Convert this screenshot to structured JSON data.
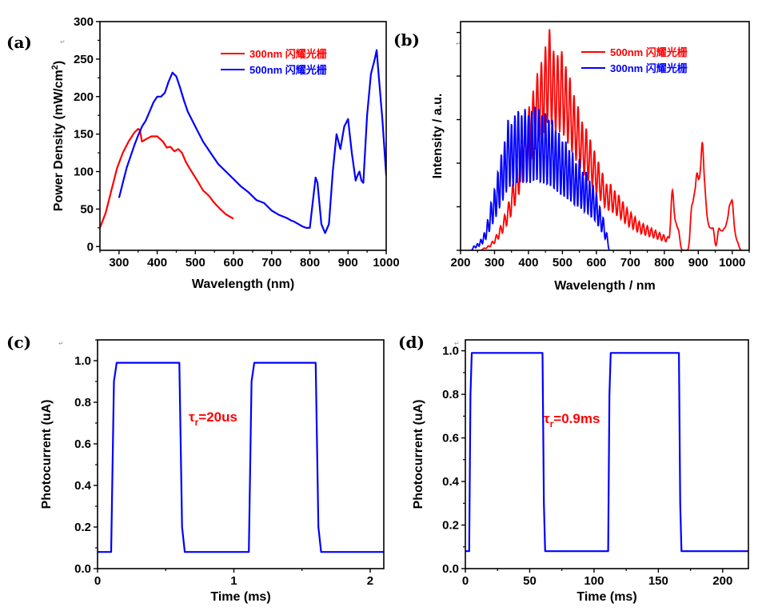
{
  "colors": {
    "red": "#ff0000",
    "blue": "#0000ff",
    "axis": "#000000"
  },
  "return_glyph": "↵",
  "chart_data": [
    {
      "type": "line",
      "panel_label": "(a)",
      "xlabel": "Wavelength (nm)",
      "ylabel": "Power Density (mW/cm²)",
      "xlim": [
        250,
        1000
      ],
      "ylim": [
        -5,
        300
      ],
      "xticks": [
        300,
        400,
        500,
        600,
        700,
        800,
        900,
        1000
      ],
      "yticks": [
        0,
        50,
        100,
        150,
        200,
        250,
        300
      ],
      "legend_position": "top-right",
      "series": [
        {
          "name": "300nm 闪耀光栅",
          "color": "#ff0000",
          "x": [
            250,
            265,
            280,
            295,
            310,
            325,
            340,
            350,
            355,
            360,
            370,
            385,
            400,
            415,
            425,
            435,
            445,
            455,
            465,
            475,
            490,
            505,
            520,
            535,
            550,
            565,
            580,
            600
          ],
          "y": [
            25,
            45,
            75,
            105,
            125,
            140,
            152,
            157,
            155,
            140,
            143,
            147,
            147,
            140,
            132,
            133,
            127,
            130,
            125,
            113,
            100,
            88,
            75,
            68,
            58,
            50,
            43,
            37
          ]
        },
        {
          "name": "500nm 闪耀光栅",
          "color": "#0000ff",
          "x": [
            300,
            310,
            320,
            330,
            340,
            350,
            360,
            370,
            380,
            390,
            400,
            410,
            420,
            430,
            440,
            450,
            460,
            470,
            480,
            500,
            520,
            540,
            560,
            580,
            600,
            620,
            640,
            660,
            670,
            680,
            700,
            720,
            740,
            750,
            760,
            770,
            780,
            790,
            800,
            810,
            815,
            820,
            830,
            840,
            850,
            860,
            870,
            880,
            890,
            900,
            910,
            920,
            925,
            930,
            935,
            940,
            950,
            960,
            970,
            975,
            980,
            990,
            1000
          ],
          "y": [
            65,
            85,
            105,
            120,
            135,
            148,
            160,
            168,
            180,
            192,
            200,
            200,
            205,
            220,
            232,
            227,
            212,
            195,
            180,
            160,
            140,
            125,
            110,
            100,
            90,
            80,
            72,
            62,
            60,
            58,
            48,
            42,
            38,
            35,
            33,
            30,
            27,
            25,
            25,
            70,
            92,
            85,
            30,
            18,
            30,
            100,
            150,
            130,
            160,
            170,
            125,
            88,
            95,
            100,
            88,
            85,
            175,
            230,
            250,
            262,
            230,
            170,
            95
          ]
        }
      ]
    },
    {
      "type": "line",
      "panel_label": "(b)",
      "xlabel": "Wavelength / nm",
      "ylabel": "Intensity / a.u.",
      "xlim": [
        200,
        1050
      ],
      "ylim": [
        0,
        1.05
      ],
      "xticks": [
        200,
        300,
        400,
        500,
        600,
        700,
        800,
        900,
        1000
      ],
      "yticks_unlabeled": 5,
      "legend_position": "top-right",
      "series": [
        {
          "name": "500nm 闪耀光栅",
          "color": "#ff0000",
          "peak_x": [
            270,
            282,
            294,
            306,
            318,
            330,
            342,
            354,
            366,
            378,
            390,
            402,
            414,
            426,
            438,
            450,
            462,
            474,
            486,
            498,
            510,
            522,
            534,
            546,
            558,
            570,
            582,
            594,
            606,
            618,
            630,
            642,
            654,
            666,
            678,
            690,
            702,
            714,
            726,
            738,
            750,
            762,
            774,
            786,
            798,
            810,
            822,
            826,
            834,
            842,
            880,
            888,
            896,
            904,
            912,
            920,
            928,
            936,
            944,
            960,
            968,
            976,
            984,
            992,
            1000,
            1008,
            1016
          ],
          "peak_y": [
            0.01,
            0.02,
            0.04,
            0.07,
            0.11,
            0.16,
            0.22,
            0.3,
            0.38,
            0.47,
            0.55,
            0.65,
            0.72,
            0.8,
            0.85,
            0.92,
            1.0,
            0.9,
            0.88,
            0.9,
            0.83,
            0.78,
            0.7,
            0.65,
            0.58,
            0.55,
            0.5,
            0.45,
            0.4,
            0.35,
            0.3,
            0.3,
            0.27,
            0.25,
            0.22,
            0.19,
            0.17,
            0.15,
            0.13,
            0.12,
            0.11,
            0.1,
            0.09,
            0.08,
            0.07,
            0.06,
            0.17,
            0.14,
            0.1,
            0.08,
            0.17,
            0.2,
            0.3,
            0.25,
            0.44,
            0.22,
            0.1,
            0.08,
            0.09,
            0.09,
            0.07,
            0.08,
            0.1,
            0.17,
            0.2,
            0.06,
            0.03
          ]
        },
        {
          "name": "300nm 闪耀光栅",
          "color": "#0000ff",
          "peak_x": [
            240,
            250,
            260,
            270,
            280,
            290,
            300,
            310,
            320,
            330,
            340,
            350,
            360,
            370,
            380,
            390,
            400,
            410,
            420,
            430,
            440,
            450,
            460,
            470,
            480,
            490,
            500,
            510,
            520,
            530,
            540,
            550,
            560,
            570,
            580,
            590,
            600,
            610,
            620,
            630
          ],
          "peak_y": [
            0.02,
            0.03,
            0.05,
            0.08,
            0.14,
            0.22,
            0.28,
            0.36,
            0.44,
            0.5,
            0.6,
            0.58,
            0.62,
            0.64,
            0.62,
            0.65,
            0.62,
            0.64,
            0.66,
            0.65,
            0.62,
            0.63,
            0.6,
            0.6,
            0.55,
            0.54,
            0.5,
            0.5,
            0.46,
            0.45,
            0.4,
            0.42,
            0.36,
            0.36,
            0.32,
            0.3,
            0.26,
            0.2,
            0.15,
            0.08
          ]
        }
      ]
    },
    {
      "type": "line",
      "panel_label": "(c)",
      "xlabel": "Time (ms)",
      "ylabel": "Photocurrent (uA)",
      "xlim": [
        0,
        2.1
      ],
      "ylim": [
        0,
        1.1
      ],
      "xticks": [
        0,
        1,
        2
      ],
      "yticks": [
        0.0,
        0.2,
        0.4,
        0.6,
        0.8,
        1.0
      ],
      "annotation": "τr=20us",
      "series": [
        {
          "name": "",
          "color": "#0000ff",
          "x": [
            0,
            0.1,
            0.12,
            0.14,
            0.6,
            0.62,
            0.64,
            1.11,
            1.13,
            1.15,
            1.6,
            1.62,
            1.64,
            2.1
          ],
          "y": [
            0.08,
            0.08,
            0.9,
            0.99,
            0.99,
            0.2,
            0.08,
            0.08,
            0.9,
            0.99,
            0.99,
            0.2,
            0.08,
            0.08
          ]
        }
      ]
    },
    {
      "type": "line",
      "panel_label": "(d)",
      "xlabel": "Time (ms)",
      "ylabel": "Photocurrent (uA)",
      "xlim": [
        0,
        220
      ],
      "ylim": [
        0,
        1.05
      ],
      "xticks": [
        0,
        50,
        100,
        150,
        200
      ],
      "yticks": [
        0.0,
        0.2,
        0.4,
        0.6,
        0.8,
        1.0
      ],
      "annotation": "τr=0.9ms",
      "series": [
        {
          "name": "",
          "color": "#0000ff",
          "x": [
            0,
            3,
            4,
            5,
            60,
            61,
            62,
            111,
            112,
            113,
            166,
            167,
            168,
            220
          ],
          "y": [
            0.08,
            0.08,
            0.8,
            0.99,
            0.99,
            0.3,
            0.08,
            0.08,
            0.8,
            0.99,
            0.99,
            0.3,
            0.08,
            0.08
          ]
        }
      ]
    }
  ]
}
